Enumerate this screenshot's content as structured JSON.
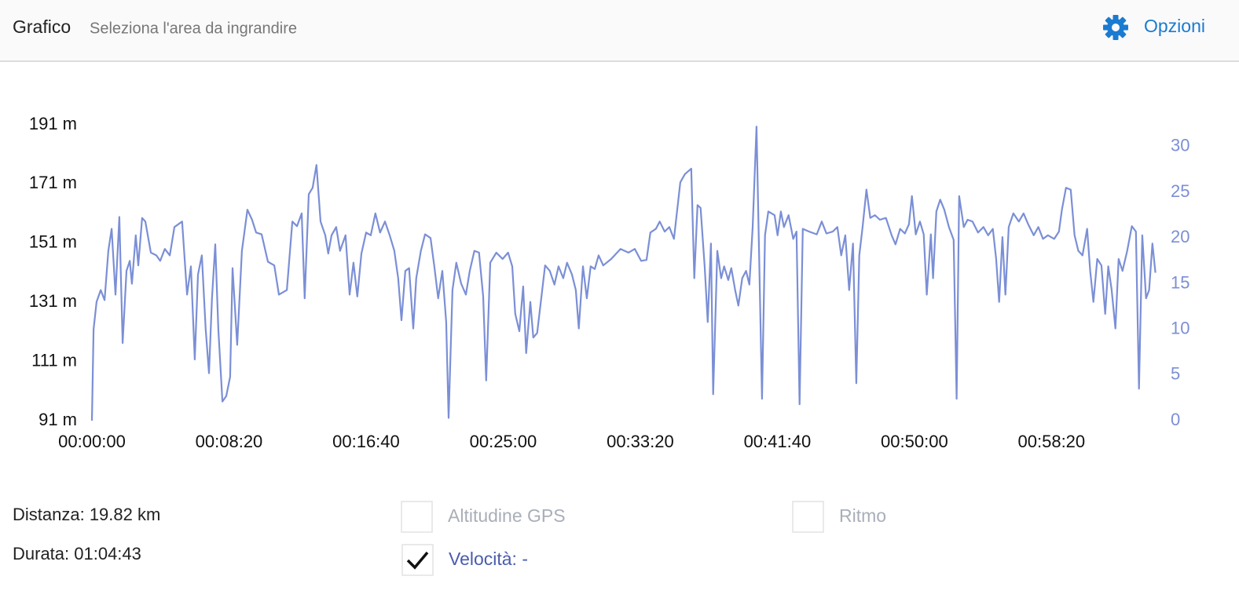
{
  "header": {
    "title": "Grafico",
    "subtitle": "Seleziona l'area da ingrandire",
    "options": "Opzioni"
  },
  "chart_data": {
    "type": "line",
    "x": [
      0,
      6,
      17,
      32,
      46,
      60,
      72,
      86,
      100,
      112,
      126,
      138,
      146,
      160,
      169,
      183,
      195,
      215,
      235,
      249,
      266,
      284,
      301,
      329,
      347,
      361,
      375,
      387,
      401,
      415,
      427,
      438,
      450,
      461,
      476,
      490,
      504,
      513,
      530,
      547,
      567,
      584,
      599,
      619,
      642,
      665,
      682,
      711,
      731,
      748,
      765,
      776,
      791,
      805,
      819,
      834,
      851,
      862,
      874,
      891,
      905,
      925,
      940,
      954,
      968,
      983,
      1000,
      1017,
      1034,
      1051,
      1069,
      1086,
      1103,
      1117,
      1129,
      1143,
      1157,
      1172,
      1183,
      1200,
      1215,
      1235,
      1249,
      1263,
      1278,
      1292,
      1301,
      1315,
      1329,
      1347,
      1364,
      1378,
      1395,
      1412,
      1427,
      1438,
      1453,
      1475,
      1498,
      1518,
      1533,
      1544,
      1559,
      1573,
      1584,
      1599,
      1610,
      1624,
      1639,
      1653,
      1670,
      1687,
      1702,
      1719,
      1733,
      1751,
      1765,
      1776,
      1791,
      1805,
      1819,
      1834,
      1848,
      1865,
      1894,
      1928,
      1957,
      1980,
      2003,
      2023,
      2037,
      2057,
      2071,
      2089,
      2106,
      2123,
      2146,
      2163,
      2186,
      2197,
      2209,
      2220,
      2235,
      2246,
      2258,
      2266,
      2281,
      2295,
      2306,
      2321,
      2332,
      2346,
      2358,
      2372,
      2386,
      2398,
      2410,
      2424,
      2432,
      2444,
      2455,
      2467,
      2490,
      2501,
      2513,
      2524,
      2541,
      2558,
      2570,
      2581,
      2593,
      2616,
      2644,
      2662,
      2679,
      2702,
      2719,
      2733,
      2748,
      2762,
      2776,
      2788,
      2799,
      2811,
      2825,
      2839,
      2856,
      2874,
      2896,
      2917,
      2931,
      2948,
      2965,
      2980,
      2991,
      3005,
      3020,
      3034,
      3045,
      3060,
      3068,
      3080,
      3094,
      3109,
      3126,
      3143,
      3154,
      3163,
      3180,
      3194,
      3212,
      3232,
      3252,
      3269,
      3286,
      3298,
      3309,
      3321,
      3332,
      3344,
      3361,
      3381,
      3398,
      3415,
      3435,
      3452,
      3469,
      3487,
      3510,
      3527,
      3538,
      3553,
      3570,
      3584,
      3598,
      3613,
      3630,
      3641,
      3653,
      3667,
      3682,
      3696,
      3707,
      3719,
      3733,
      3745,
      3759,
      3776,
      3793,
      3808,
      3819,
      3831,
      3845,
      3856,
      3868,
      3879
    ],
    "series": [
      {
        "color": "#7b8fd6",
        "axis": "y2",
        "values": [
          0,
          10,
          13,
          14.3,
          13.2,
          18.6,
          21,
          13.8,
          22.3,
          8.5,
          16.4,
          17.5,
          15,
          20.3,
          17,
          22.2,
          21.8,
          18.4,
          18.1,
          17.5,
          18.8,
          18.1,
          21.2,
          21.8,
          13.8,
          16.9,
          6.7,
          16,
          18.1,
          10,
          5.2,
          13.4,
          19.3,
          10,
          2.1,
          2.7,
          4.8,
          16.7,
          8.3,
          18.6,
          23.1,
          22,
          20.6,
          20.4,
          17.4,
          17,
          13.8,
          14.3,
          21.8,
          21.3,
          22.7,
          13.4,
          24.8,
          25.5,
          28,
          21.8,
          20.3,
          18.3,
          20.3,
          21.2,
          18.6,
          20.3,
          13.8,
          17.3,
          13.6,
          18.3,
          20.6,
          20.3,
          22.7,
          20.6,
          21.8,
          20.3,
          18.6,
          15.6,
          11,
          16.4,
          16.7,
          10.1,
          15.6,
          18.6,
          20.4,
          20,
          16.9,
          13.4,
          16.4,
          10.8,
          0.3,
          14.3,
          17.3,
          15,
          13.8,
          16.4,
          18.6,
          18.4,
          13.6,
          4.4,
          17.3,
          18.4,
          17.7,
          18.4,
          16.9,
          11.7,
          9.8,
          14.7,
          7.4,
          13,
          9.1,
          9.6,
          13.4,
          17,
          16.4,
          14.9,
          16.9,
          15.6,
          17.3,
          16,
          14.3,
          10.1,
          16.9,
          13.4,
          16.9,
          16.6,
          18.1,
          17,
          17.7,
          18.8,
          18.4,
          18.8,
          17.5,
          17.6,
          20.6,
          21,
          21.8,
          20.7,
          21.2,
          19.9,
          26.1,
          27,
          27.6,
          15.6,
          23.6,
          23.3,
          16.9,
          10.8,
          19.4,
          2.9,
          18.6,
          15.6,
          16.9,
          15.4,
          16.7,
          14.3,
          12.6,
          15.6,
          16.4,
          14.9,
          21.2,
          32.2,
          20.3,
          2.4,
          20.3,
          22.9,
          22.5,
          20.3,
          22.9,
          21.2,
          22.5,
          19.9,
          20.7,
          1.8,
          21,
          20.7,
          20.4,
          21.8,
          20.5,
          20.7,
          21.2,
          18.1,
          20.3,
          14.3,
          19.4,
          4.1,
          18.1,
          21.2,
          25.3,
          22.2,
          22.5,
          22,
          22.2,
          20.3,
          19.3,
          21,
          20.5,
          21.5,
          24.6,
          20.4,
          21.8,
          20.4,
          13.8,
          20.4,
          15.6,
          22.9,
          24.2,
          23.1,
          21.2,
          19.8,
          2.4,
          24.6,
          21.2,
          22,
          21.8,
          20.6,
          21.2,
          20.3,
          21,
          17.7,
          13,
          20.1,
          13.8,
          21.2,
          22.7,
          21.8,
          22.7,
          21.5,
          20.3,
          21.2,
          19.9,
          20.3,
          19.9,
          20.7,
          23.1,
          25.5,
          25.3,
          20.3,
          18.6,
          18.1,
          21,
          16.4,
          13,
          17.7,
          17,
          11.7,
          16.9,
          14.4,
          10.1,
          17.7,
          16.4,
          18.6,
          21.3,
          20.7,
          3.5,
          20.3,
          13.4,
          14.3,
          19.4,
          16.2
        ]
      }
    ],
    "xlim": [
      0,
      3883
    ],
    "xticks": [
      {
        "value": 0,
        "label": "00:00:00"
      },
      {
        "value": 500,
        "label": "00:08:20"
      },
      {
        "value": 1000,
        "label": "00:16:40"
      },
      {
        "value": 1500,
        "label": "00:25:00"
      },
      {
        "value": 2000,
        "label": "00:33:20"
      },
      {
        "value": 2500,
        "label": "00:41:40"
      },
      {
        "value": 3000,
        "label": "00:50:00"
      },
      {
        "value": 3500,
        "label": "00:58:20"
      }
    ],
    "ylim": [
      91,
      191
    ],
    "yticks": [
      {
        "value": 91,
        "label": "91 m"
      },
      {
        "value": 111,
        "label": "111 m"
      },
      {
        "value": 131,
        "label": "131 m"
      },
      {
        "value": 151,
        "label": "151 m"
      },
      {
        "value": 171,
        "label": "171 m"
      },
      {
        "value": 191,
        "label": "191 m"
      }
    ],
    "y2lim": [
      0,
      32.4
    ],
    "y2ticks": [
      0,
      5,
      10,
      15,
      20,
      25,
      30
    ],
    "y2color": "#7b8fd6"
  },
  "stats": [
    "Distanza: 19.82 km",
    "Durata: 01:04:43"
  ],
  "toggles": [
    {
      "label": "Altitudine GPS",
      "checked": false
    },
    {
      "label": "Ritmo",
      "checked": false
    },
    {
      "label": "Velocità: -",
      "checked": true
    }
  ]
}
